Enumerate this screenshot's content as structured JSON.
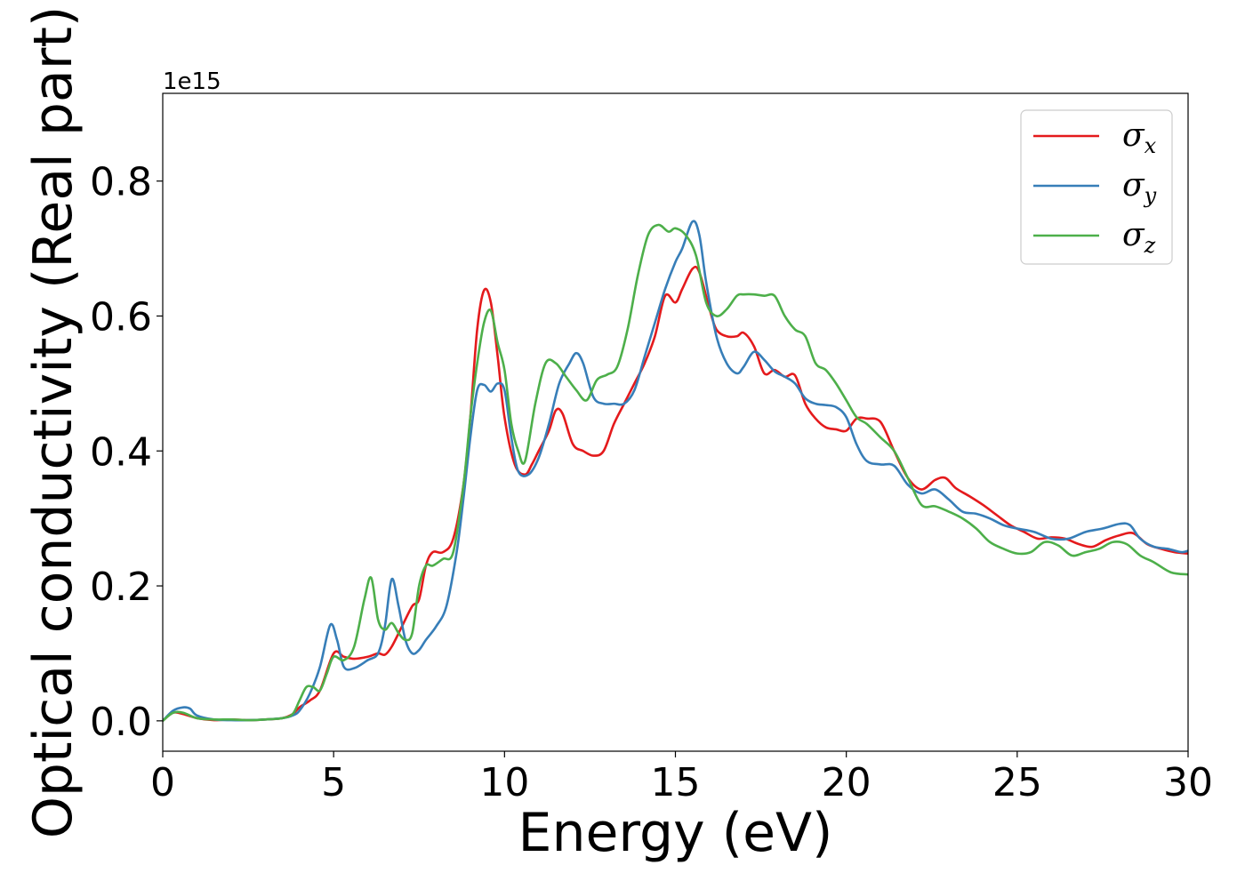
{
  "chart_data": {
    "type": "line",
    "title": "",
    "xlabel": "Energy (eV)",
    "ylabel": "Optical conductivity (Real part)",
    "y_offset_label": "1e15",
    "xlim": [
      0,
      30
    ],
    "ylim": [
      -0.045,
      0.93
    ],
    "xticks": [
      0,
      5,
      10,
      15,
      20,
      25,
      30
    ],
    "xtick_labels": [
      "0",
      "5",
      "10",
      "15",
      "20",
      "25",
      "30"
    ],
    "yticks": [
      0.0,
      0.2,
      0.4,
      0.6,
      0.8
    ],
    "ytick_labels": [
      "0.0",
      "0.2",
      "0.4",
      "0.6",
      "0.8"
    ],
    "grid": false,
    "legend_position": "top-right",
    "series": [
      {
        "name": "σx",
        "symbol": "σ",
        "subscript": "x",
        "color": "#e41a1c",
        "x": [
          0,
          0.3,
          0.6,
          1.0,
          1.5,
          2.0,
          2.5,
          3.0,
          3.5,
          3.8,
          4.0,
          4.3,
          4.6,
          5.0,
          5.3,
          5.6,
          6.0,
          6.3,
          6.5,
          6.7,
          7.0,
          7.3,
          7.5,
          7.7,
          7.9,
          8.2,
          8.5,
          8.8,
          9.0,
          9.2,
          9.4,
          9.6,
          9.8,
          10.0,
          10.3,
          10.6,
          10.8,
          11.0,
          11.3,
          11.5,
          11.7,
          12.0,
          12.3,
          12.6,
          12.9,
          13.2,
          13.5,
          13.8,
          14.1,
          14.4,
          14.7,
          15.0,
          15.2,
          15.5,
          15.7,
          16.0,
          16.2,
          16.5,
          16.8,
          17.0,
          17.3,
          17.6,
          17.9,
          18.2,
          18.5,
          18.8,
          19.1,
          19.4,
          19.7,
          20.0,
          20.3,
          20.6,
          21.0,
          21.4,
          21.8,
          22.2,
          22.6,
          22.9,
          23.2,
          23.6,
          24.0,
          24.4,
          24.8,
          25.2,
          25.6,
          26.0,
          26.4,
          26.8,
          27.2,
          27.6,
          28.0,
          28.4,
          28.8,
          29.2,
          29.6,
          30.0
        ],
        "y": [
          0,
          0.012,
          0.01,
          0.004,
          0.001,
          0.002,
          0.001,
          0.002,
          0.004,
          0.01,
          0.02,
          0.03,
          0.045,
          0.1,
          0.095,
          0.092,
          0.095,
          0.1,
          0.098,
          0.11,
          0.14,
          0.17,
          0.18,
          0.23,
          0.25,
          0.25,
          0.27,
          0.35,
          0.45,
          0.58,
          0.638,
          0.62,
          0.54,
          0.45,
          0.38,
          0.365,
          0.38,
          0.4,
          0.43,
          0.46,
          0.455,
          0.41,
          0.4,
          0.393,
          0.4,
          0.44,
          0.47,
          0.5,
          0.53,
          0.57,
          0.63,
          0.62,
          0.64,
          0.67,
          0.665,
          0.61,
          0.58,
          0.57,
          0.57,
          0.575,
          0.555,
          0.515,
          0.52,
          0.51,
          0.512,
          0.47,
          0.448,
          0.435,
          0.432,
          0.43,
          0.448,
          0.448,
          0.443,
          0.4,
          0.36,
          0.343,
          0.357,
          0.36,
          0.345,
          0.333,
          0.32,
          0.305,
          0.29,
          0.28,
          0.27,
          0.272,
          0.27,
          0.262,
          0.258,
          0.268,
          0.275,
          0.278,
          0.262,
          0.255,
          0.25,
          0.248
        ]
      },
      {
        "name": "σy",
        "symbol": "σ",
        "subscript": "y",
        "color": "#377eb8",
        "x": [
          0,
          0.3,
          0.6,
          0.8,
          1.0,
          1.5,
          2.0,
          2.5,
          3.0,
          3.5,
          3.8,
          4.0,
          4.3,
          4.6,
          4.9,
          5.1,
          5.3,
          5.6,
          6.0,
          6.3,
          6.5,
          6.7,
          6.9,
          7.1,
          7.3,
          7.5,
          7.7,
          8.0,
          8.3,
          8.6,
          8.8,
          9.0,
          9.2,
          9.4,
          9.6,
          9.8,
          10.0,
          10.2,
          10.4,
          10.7,
          11.0,
          11.3,
          11.6,
          11.9,
          12.1,
          12.3,
          12.6,
          12.9,
          13.2,
          13.5,
          13.8,
          14.1,
          14.4,
          14.7,
          15.0,
          15.2,
          15.5,
          15.7,
          15.9,
          16.2,
          16.5,
          16.8,
          17.0,
          17.3,
          17.6,
          17.9,
          18.2,
          18.5,
          18.8,
          19.1,
          19.4,
          19.7,
          20.0,
          20.3,
          20.6,
          21.0,
          21.4,
          21.8,
          22.2,
          22.6,
          23.0,
          23.4,
          23.8,
          24.2,
          24.6,
          25.0,
          25.5,
          26.0,
          26.5,
          27.0,
          27.5,
          28.0,
          28.3,
          28.6,
          29.0,
          29.4,
          29.8,
          30.0
        ],
        "y": [
          0,
          0.015,
          0.02,
          0.018,
          0.008,
          0.002,
          0.001,
          0.001,
          0.002,
          0.004,
          0.008,
          0.015,
          0.04,
          0.08,
          0.142,
          0.12,
          0.08,
          0.078,
          0.09,
          0.1,
          0.14,
          0.21,
          0.17,
          0.12,
          0.1,
          0.105,
          0.12,
          0.14,
          0.17,
          0.25,
          0.33,
          0.42,
          0.49,
          0.498,
          0.488,
          0.5,
          0.49,
          0.42,
          0.37,
          0.365,
          0.39,
          0.44,
          0.5,
          0.53,
          0.545,
          0.53,
          0.48,
          0.47,
          0.47,
          0.47,
          0.49,
          0.54,
          0.59,
          0.64,
          0.68,
          0.7,
          0.74,
          0.72,
          0.65,
          0.57,
          0.53,
          0.515,
          0.525,
          0.547,
          0.535,
          0.518,
          0.51,
          0.5,
          0.478,
          0.47,
          0.468,
          0.465,
          0.45,
          0.41,
          0.385,
          0.38,
          0.378,
          0.35,
          0.337,
          0.343,
          0.328,
          0.31,
          0.307,
          0.3,
          0.29,
          0.285,
          0.28,
          0.27,
          0.27,
          0.28,
          0.285,
          0.292,
          0.29,
          0.27,
          0.258,
          0.255,
          0.25,
          0.252
        ]
      },
      {
        "name": "σz",
        "symbol": "σ",
        "subscript": "z",
        "color": "#4daf4a",
        "x": [
          0,
          0.3,
          0.6,
          1.0,
          1.5,
          2.0,
          2.5,
          3.0,
          3.5,
          3.8,
          4.0,
          4.2,
          4.4,
          4.6,
          4.8,
          5.0,
          5.3,
          5.6,
          5.9,
          6.1,
          6.3,
          6.5,
          6.7,
          6.9,
          7.1,
          7.3,
          7.5,
          7.7,
          7.9,
          8.2,
          8.5,
          8.8,
          9.0,
          9.2,
          9.4,
          9.6,
          9.8,
          10.0,
          10.2,
          10.4,
          10.6,
          10.9,
          11.2,
          11.5,
          11.8,
          12.1,
          12.4,
          12.7,
          13.0,
          13.3,
          13.6,
          13.9,
          14.2,
          14.5,
          14.8,
          15.0,
          15.3,
          15.6,
          15.9,
          16.2,
          16.5,
          16.8,
          17.0,
          17.3,
          17.6,
          17.9,
          18.2,
          18.5,
          18.8,
          19.1,
          19.4,
          19.7,
          20.0,
          20.3,
          20.6,
          21.0,
          21.4,
          21.8,
          22.2,
          22.6,
          23.0,
          23.4,
          23.8,
          24.2,
          24.6,
          25.0,
          25.4,
          25.8,
          26.2,
          26.6,
          27.0,
          27.4,
          27.8,
          28.2,
          28.6,
          29.0,
          29.5,
          30.0
        ],
        "y": [
          0,
          0.012,
          0.012,
          0.004,
          0.002,
          0.002,
          0.001,
          0.002,
          0.004,
          0.01,
          0.03,
          0.05,
          0.05,
          0.045,
          0.07,
          0.095,
          0.09,
          0.11,
          0.18,
          0.212,
          0.15,
          0.135,
          0.145,
          0.13,
          0.12,
          0.13,
          0.2,
          0.23,
          0.23,
          0.24,
          0.25,
          0.35,
          0.45,
          0.53,
          0.59,
          0.608,
          0.56,
          0.52,
          0.44,
          0.4,
          0.385,
          0.47,
          0.53,
          0.53,
          0.51,
          0.49,
          0.475,
          0.505,
          0.513,
          0.525,
          0.58,
          0.66,
          0.72,
          0.735,
          0.725,
          0.73,
          0.72,
          0.69,
          0.62,
          0.6,
          0.61,
          0.63,
          0.632,
          0.632,
          0.63,
          0.63,
          0.6,
          0.58,
          0.57,
          0.53,
          0.52,
          0.5,
          0.475,
          0.45,
          0.44,
          0.42,
          0.4,
          0.36,
          0.32,
          0.318,
          0.31,
          0.3,
          0.285,
          0.265,
          0.255,
          0.248,
          0.25,
          0.265,
          0.26,
          0.245,
          0.25,
          0.255,
          0.265,
          0.262,
          0.245,
          0.235,
          0.22,
          0.217
        ]
      }
    ]
  }
}
